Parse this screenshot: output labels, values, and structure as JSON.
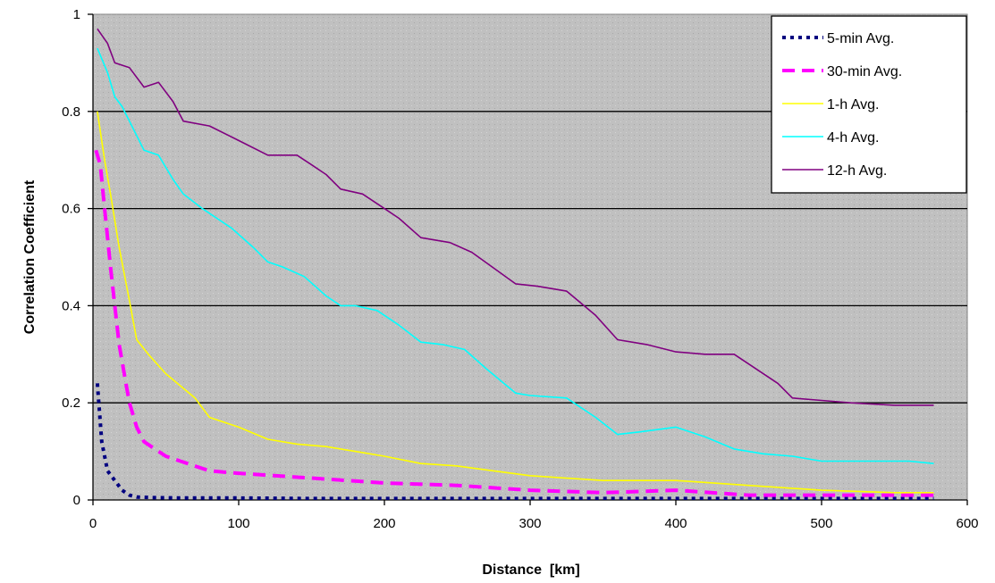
{
  "chart_data": {
    "type": "line",
    "xlabel": "Distance  [km]",
    "ylabel": "Correlation Coefficient",
    "xlim": [
      0,
      600
    ],
    "ylim": [
      0,
      1
    ],
    "xticks": [
      0,
      100,
      200,
      300,
      400,
      500,
      600
    ],
    "yticks": [
      0,
      0.2,
      0.4,
      0.6,
      0.8,
      1
    ],
    "ytick_labels": [
      "0",
      "0.2",
      "0.4",
      "0.6",
      "0.8",
      "1"
    ],
    "grid": "horizontal",
    "legend_position": "top-right",
    "background": "#c0c0c0",
    "series": [
      {
        "name": "5-min Avg.",
        "color": "#000080",
        "style": "dotted",
        "x": [
          3,
          6,
          10,
          15,
          20,
          25,
          30,
          40,
          60,
          80,
          100,
          150,
          200,
          300,
          400,
          500,
          577
        ],
        "y": [
          0.24,
          0.12,
          0.06,
          0.04,
          0.02,
          0.01,
          0.006,
          0.005,
          0.004,
          0.004,
          0.004,
          0.003,
          0.003,
          0.003,
          0.003,
          0.003,
          0.003
        ]
      },
      {
        "name": "30-min Avg.",
        "color": "#ff00ff",
        "style": "dashed",
        "x": [
          2,
          5,
          8,
          12,
          15,
          18,
          22,
          25,
          30,
          35,
          40,
          50,
          60,
          80,
          100,
          150,
          200,
          250,
          300,
          350,
          400,
          450,
          500,
          550,
          577
        ],
        "y": [
          0.72,
          0.69,
          0.6,
          0.48,
          0.4,
          0.32,
          0.25,
          0.2,
          0.15,
          0.12,
          0.11,
          0.09,
          0.08,
          0.06,
          0.055,
          0.045,
          0.035,
          0.03,
          0.02,
          0.015,
          0.02,
          0.01,
          0.01,
          0.01,
          0.01
        ]
      },
      {
        "name": "1-h Avg.",
        "color": "#ffff00",
        "style": "solid",
        "x": [
          3,
          8,
          12,
          18,
          25,
          30,
          38,
          50,
          70,
          80,
          100,
          120,
          140,
          160,
          180,
          200,
          225,
          250,
          275,
          300,
          350,
          400,
          450,
          500,
          550,
          577
        ],
        "y": [
          0.8,
          0.7,
          0.63,
          0.52,
          0.41,
          0.33,
          0.3,
          0.26,
          0.21,
          0.17,
          0.15,
          0.125,
          0.115,
          0.11,
          0.1,
          0.09,
          0.075,
          0.07,
          0.06,
          0.05,
          0.04,
          0.04,
          0.03,
          0.02,
          0.015,
          0.015
        ]
      },
      {
        "name": "4-h Avg.",
        "color": "#00ffff",
        "style": "solid",
        "x": [
          3,
          10,
          15,
          20,
          25,
          35,
          45,
          55,
          62,
          75,
          95,
          110,
          120,
          130,
          145,
          160,
          170,
          180,
          195,
          210,
          225,
          240,
          255,
          270,
          290,
          300,
          325,
          345,
          360,
          375,
          400,
          420,
          440,
          460,
          480,
          500,
          520,
          560,
          577
        ],
        "y": [
          0.93,
          0.88,
          0.83,
          0.81,
          0.78,
          0.72,
          0.71,
          0.66,
          0.63,
          0.6,
          0.56,
          0.52,
          0.49,
          0.48,
          0.46,
          0.42,
          0.4,
          0.4,
          0.39,
          0.36,
          0.325,
          0.32,
          0.31,
          0.27,
          0.22,
          0.215,
          0.21,
          0.17,
          0.135,
          0.14,
          0.15,
          0.13,
          0.105,
          0.095,
          0.09,
          0.08,
          0.08,
          0.08,
          0.075
        ]
      },
      {
        "name": "12-h Avg.",
        "color": "#800080",
        "style": "solid",
        "x": [
          3,
          10,
          15,
          25,
          35,
          45,
          55,
          62,
          80,
          100,
          120,
          140,
          150,
          160,
          170,
          185,
          200,
          210,
          225,
          245,
          260,
          290,
          305,
          325,
          345,
          360,
          380,
          400,
          420,
          440,
          450,
          470,
          480,
          500,
          520,
          550,
          577
        ],
        "y": [
          0.97,
          0.94,
          0.9,
          0.89,
          0.85,
          0.86,
          0.82,
          0.78,
          0.77,
          0.74,
          0.71,
          0.71,
          0.69,
          0.67,
          0.64,
          0.63,
          0.6,
          0.58,
          0.54,
          0.53,
          0.51,
          0.445,
          0.44,
          0.43,
          0.38,
          0.33,
          0.32,
          0.305,
          0.3,
          0.3,
          0.28,
          0.24,
          0.21,
          0.205,
          0.2,
          0.195,
          0.195
        ]
      }
    ]
  }
}
